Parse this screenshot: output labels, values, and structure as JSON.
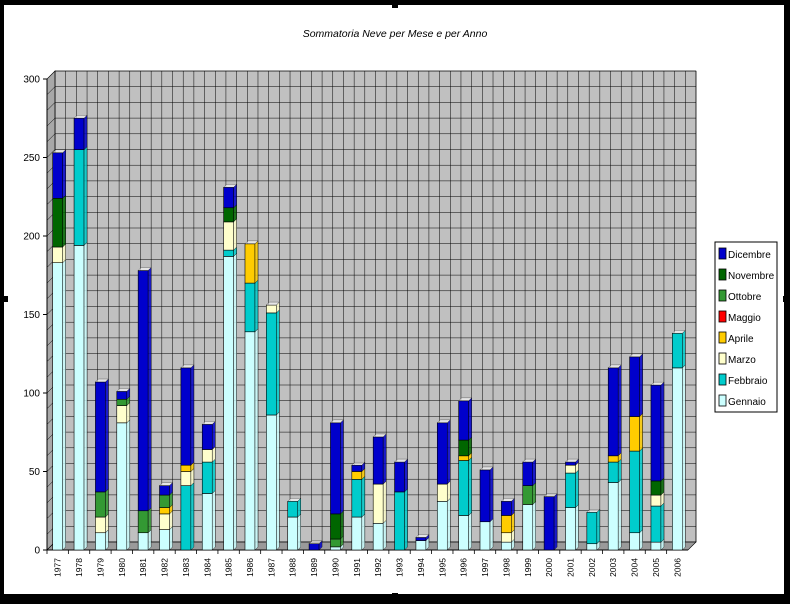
{
  "colors": {
    "frame": "#000000",
    "paper": "#ffffff",
    "plot": "#c0c0c0",
    "grid": "#000000"
  },
  "chart_data": {
    "type": "bar",
    "stacked": true,
    "title": "Sommatoria Neve per Mese e per Anno",
    "xlabel": "",
    "ylabel": "",
    "ylim": [
      0,
      300
    ],
    "yticks": [
      0,
      50,
      100,
      150,
      200,
      250,
      300
    ],
    "grid": true,
    "legend_position": "right",
    "categories": [
      "1977",
      "1978",
      "1979",
      "1980",
      "1981",
      "1982",
      "1983",
      "1984",
      "1985",
      "1986",
      "1987",
      "1988",
      "1989",
      "1990",
      "1991",
      "1992",
      "1993",
      "1994",
      "1995",
      "1996",
      "1997",
      "1998",
      "1999",
      "2000",
      "2001",
      "2002",
      "2003",
      "2004",
      "2005",
      "2006"
    ],
    "series": [
      {
        "name": "Gennaio",
        "color": "#ccffff",
        "values": [
          183,
          194,
          11,
          81,
          11,
          13,
          0,
          36,
          187,
          139,
          86,
          21,
          0,
          2,
          21,
          17,
          0,
          6,
          31,
          22,
          18,
          5,
          29,
          0,
          27,
          4,
          43,
          11,
          5,
          116
        ]
      },
      {
        "name": "Febbraio",
        "color": "#00cccc",
        "values": [
          0,
          61,
          0,
          0,
          0,
          0,
          41,
          20,
          4,
          31,
          65,
          10,
          0,
          0,
          24,
          0,
          37,
          0,
          0,
          35,
          0,
          0,
          0,
          0,
          22,
          20,
          13,
          52,
          23,
          22
        ]
      },
      {
        "name": "Marzo",
        "color": "#ffffcc",
        "values": [
          10,
          0,
          10,
          11,
          0,
          10,
          9,
          8,
          18,
          0,
          5,
          0,
          0,
          0,
          0,
          25,
          0,
          0,
          11,
          0,
          0,
          6,
          0,
          0,
          5,
          0,
          0,
          0,
          7,
          0
        ]
      },
      {
        "name": "Aprile",
        "color": "#ffcc00",
        "values": [
          0,
          0,
          0,
          0,
          0,
          4,
          4,
          0,
          0,
          25,
          0,
          0,
          0,
          0,
          5,
          0,
          0,
          0,
          0,
          3,
          0,
          11,
          0,
          0,
          0,
          0,
          4,
          22,
          0,
          0
        ]
      },
      {
        "name": "Maggio",
        "color": "#ff0000",
        "values": [
          0,
          0,
          0,
          0,
          0,
          0,
          0,
          0,
          0,
          0,
          0,
          0,
          0,
          0,
          0,
          0,
          0,
          0,
          0,
          0,
          0,
          0,
          0,
          0,
          0,
          0,
          0,
          0,
          0,
          0
        ]
      },
      {
        "name": "Ottobre",
        "color": "#339933",
        "values": [
          0,
          0,
          16,
          4,
          14,
          8,
          0,
          0,
          0,
          0,
          0,
          0,
          0,
          5,
          0,
          0,
          0,
          0,
          0,
          0,
          0,
          0,
          12,
          0,
          0,
          0,
          0,
          0,
          0,
          0
        ]
      },
      {
        "name": "Novembre",
        "color": "#006600",
        "values": [
          31,
          0,
          0,
          0,
          0,
          0,
          0,
          0,
          9,
          0,
          0,
          0,
          0,
          16,
          0,
          0,
          0,
          0,
          0,
          10,
          0,
          0,
          0,
          0,
          0,
          0,
          0,
          0,
          9,
          0
        ]
      },
      {
        "name": "Dicembre",
        "color": "#0000cc",
        "values": [
          29,
          20,
          70,
          5,
          153,
          6,
          62,
          16,
          13,
          0,
          0,
          0,
          4,
          58,
          4,
          30,
          19,
          2,
          39,
          25,
          33,
          9,
          15,
          34,
          2,
          0,
          56,
          38,
          61,
          0
        ]
      }
    ]
  }
}
